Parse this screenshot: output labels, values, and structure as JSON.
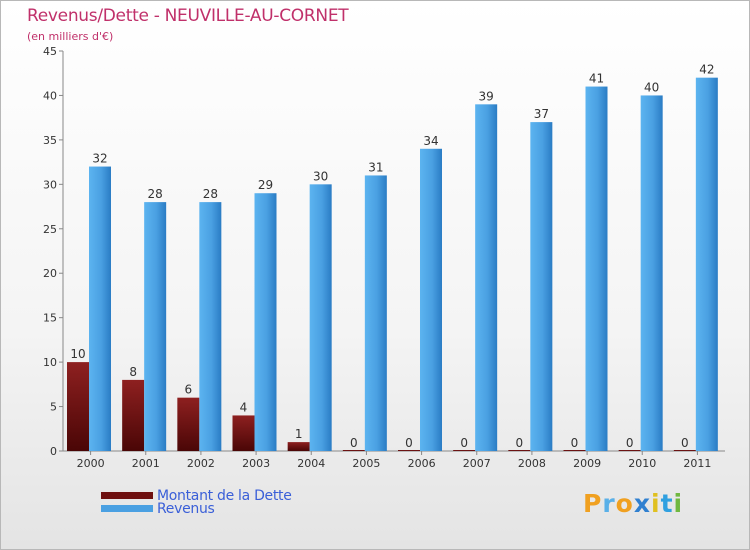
{
  "header": {
    "title": "Revenus/Dette - NEUVILLE-AU-CORNET",
    "subtitle": "(en milliers d'€)"
  },
  "chart_data": {
    "type": "bar",
    "title": "Revenus/Dette - NEUVILLE-AU-CORNET",
    "subtitle": "(en milliers d'€)",
    "categories": [
      "2000",
      "2001",
      "2002",
      "2003",
      "2004",
      "2005",
      "2006",
      "2007",
      "2008",
      "2009",
      "2010",
      "2011"
    ],
    "series": [
      {
        "name": "Montant de la Dette",
        "color": "#6e1010",
        "values": [
          10,
          8,
          6,
          4,
          1,
          0,
          0,
          0,
          0,
          0,
          0,
          0
        ]
      },
      {
        "name": "Revenus",
        "color": "#4aa0e2",
        "values": [
          32,
          28,
          28,
          29,
          30,
          31,
          34,
          39,
          37,
          41,
          40,
          42
        ]
      }
    ],
    "ylim": [
      0,
      45
    ],
    "yticks": [
      0,
      5,
      10,
      15,
      20,
      25,
      30,
      35,
      40,
      45
    ],
    "grid": false,
    "legend_position": "bottom-left"
  },
  "legend": {
    "items": [
      {
        "label": "Montant de la Dette",
        "color": "#6e1010"
      },
      {
        "label": "Revenus",
        "color": "#4aa0e2"
      }
    ]
  },
  "logo": {
    "letters": [
      {
        "char": "P",
        "color": "#f0a020"
      },
      {
        "char": "r",
        "color": "#5ab0e8"
      },
      {
        "char": "o",
        "color": "#f0a020"
      },
      {
        "char": "x",
        "color": "#3080d0"
      },
      {
        "char": "i",
        "color": "#e0c020"
      },
      {
        "char": "t",
        "color": "#30a0e0"
      },
      {
        "char": "i",
        "color": "#70b840"
      }
    ]
  }
}
